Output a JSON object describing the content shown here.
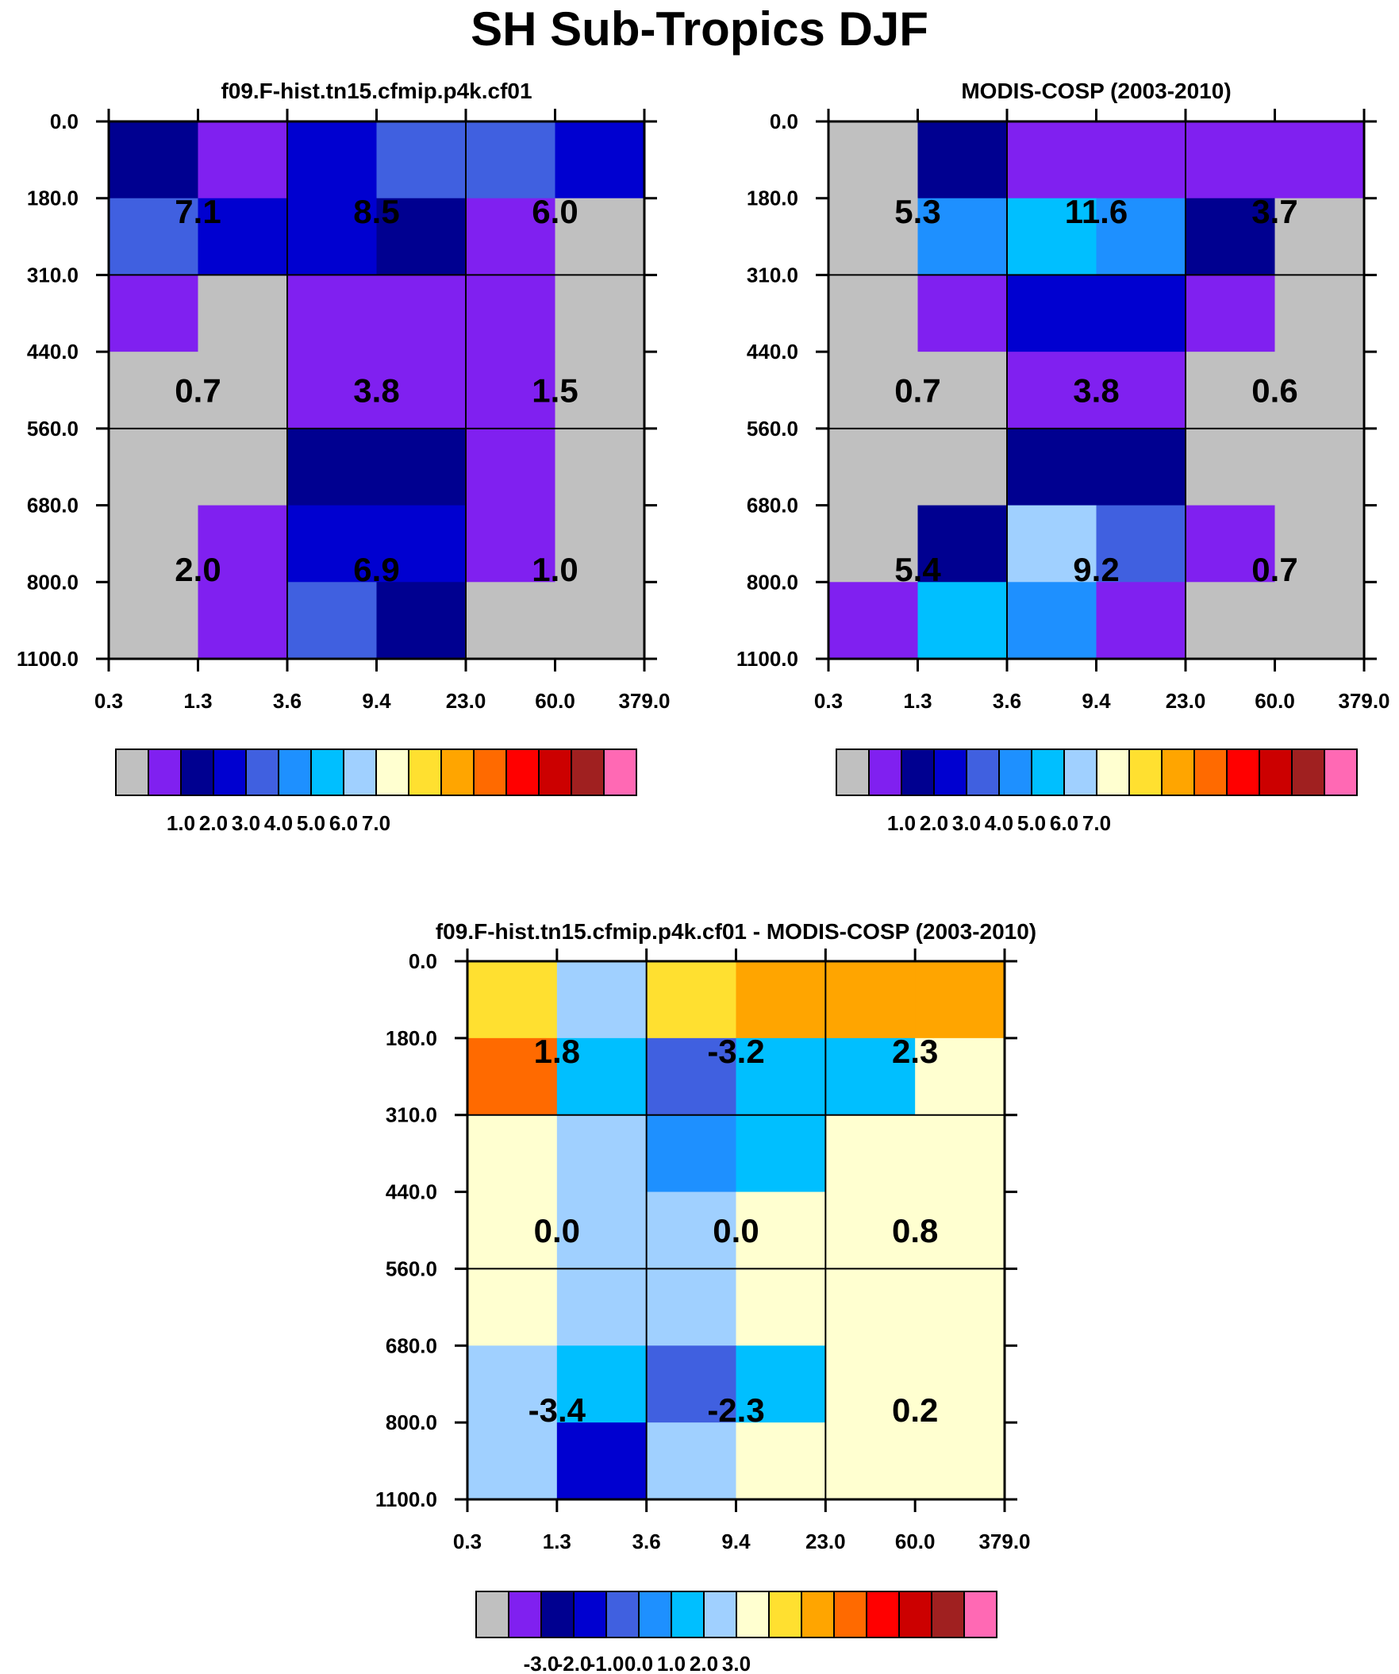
{
  "title": "SH Sub-Tropics DJF",
  "colors": {
    "palette": [
      "#c0c0c0",
      "#8020f0",
      "#000090",
      "#0000d0",
      "#4060e0",
      "#1e90ff",
      "#00bfff",
      "#a0d0ff",
      "#ffffd0",
      "#ffe030",
      "#ffa500",
      "#ff6a00",
      "#ff0000",
      "#cc0000",
      "#a02020",
      "#ff69b4"
    ]
  },
  "chart_data": [
    {
      "type": "heatmap",
      "title": "f09.F-hist.tn15.cfmip.p4k.cf01",
      "x_ticks": [
        "0.3",
        "1.3",
        "3.6",
        "9.4",
        "23.0",
        "60.0",
        "379.0"
      ],
      "y_ticks": [
        "0.0",
        "180.0",
        "310.0",
        "440.0",
        "560.0",
        "680.0",
        "800.0",
        "1100.0"
      ],
      "cells": [
        [
          2,
          1,
          3,
          4,
          4,
          3
        ],
        [
          4,
          3,
          3,
          2,
          1,
          0
        ],
        [
          1,
          0,
          1,
          1,
          1,
          0
        ],
        [
          0,
          0,
          1,
          1,
          1,
          0
        ],
        [
          0,
          0,
          2,
          2,
          1,
          0
        ],
        [
          0,
          1,
          3,
          3,
          1,
          0
        ],
        [
          0,
          1,
          4,
          2,
          0,
          0
        ]
      ],
      "boxes": [
        {
          "label": "7.1",
          "col": 0,
          "row": 0
        },
        {
          "label": "8.5",
          "col": 1,
          "row": 0
        },
        {
          "label": "6.0",
          "col": 2,
          "row": 0
        },
        {
          "label": "0.7",
          "col": 0,
          "row": 1
        },
        {
          "label": "3.8",
          "col": 1,
          "row": 1
        },
        {
          "label": "1.5",
          "col": 2,
          "row": 1
        },
        {
          "label": "2.0",
          "col": 0,
          "row": 2
        },
        {
          "label": "6.9",
          "col": 1,
          "row": 2
        },
        {
          "label": "1.0",
          "col": 2,
          "row": 2
        }
      ],
      "colorbar_labels": [
        "1.0",
        "2.0",
        "3.0",
        "4.0",
        "5.0",
        "6.0",
        "7.0"
      ]
    },
    {
      "type": "heatmap",
      "title": "MODIS-COSP (2003-2010)",
      "x_ticks": [
        "0.3",
        "1.3",
        "3.6",
        "9.4",
        "23.0",
        "60.0",
        "379.0"
      ],
      "y_ticks": [
        "0.0",
        "180.0",
        "310.0",
        "440.0",
        "560.0",
        "680.0",
        "800.0",
        "1100.0"
      ],
      "cells": [
        [
          0,
          2,
          1,
          1,
          1,
          1
        ],
        [
          0,
          5,
          6,
          5,
          2,
          0
        ],
        [
          0,
          1,
          3,
          3,
          1,
          0
        ],
        [
          0,
          0,
          1,
          1,
          0,
          0
        ],
        [
          0,
          0,
          2,
          2,
          0,
          0
        ],
        [
          0,
          2,
          7,
          4,
          1,
          0
        ],
        [
          1,
          6,
          5,
          1,
          0,
          0
        ]
      ],
      "boxes": [
        {
          "label": "5.3",
          "col": 0,
          "row": 0
        },
        {
          "label": "11.6",
          "col": 1,
          "row": 0
        },
        {
          "label": "3.7",
          "col": 2,
          "row": 0
        },
        {
          "label": "0.7",
          "col": 0,
          "row": 1
        },
        {
          "label": "3.8",
          "col": 1,
          "row": 1
        },
        {
          "label": "0.6",
          "col": 2,
          "row": 1
        },
        {
          "label": "5.4",
          "col": 0,
          "row": 2
        },
        {
          "label": "9.2",
          "col": 1,
          "row": 2
        },
        {
          "label": "0.7",
          "col": 2,
          "row": 2
        }
      ],
      "colorbar_labels": [
        "1.0",
        "2.0",
        "3.0",
        "4.0",
        "5.0",
        "6.0",
        "7.0"
      ]
    },
    {
      "type": "heatmap",
      "title": "f09.F-hist.tn15.cfmip.p4k.cf01 - MODIS-COSP (2003-2010)",
      "x_ticks": [
        "0.3",
        "1.3",
        "3.6",
        "9.4",
        "23.0",
        "60.0",
        "379.0"
      ],
      "y_ticks": [
        "0.0",
        "180.0",
        "310.0",
        "440.0",
        "560.0",
        "680.0",
        "800.0",
        "1100.0"
      ],
      "cells": [
        [
          9,
          7,
          9,
          10,
          10,
          10
        ],
        [
          11,
          6,
          4,
          6,
          6,
          8
        ],
        [
          8,
          7,
          5,
          6,
          8,
          8
        ],
        [
          8,
          7,
          7,
          8,
          8,
          8
        ],
        [
          8,
          7,
          7,
          8,
          8,
          8
        ],
        [
          7,
          6,
          4,
          6,
          8,
          8
        ],
        [
          7,
          3,
          7,
          8,
          8,
          8
        ]
      ],
      "boxes": [
        {
          "label": "1.8",
          "col": 0,
          "row": 0
        },
        {
          "label": "-3.2",
          "col": 1,
          "row": 0
        },
        {
          "label": "2.3",
          "col": 2,
          "row": 0
        },
        {
          "label": "0.0",
          "col": 0,
          "row": 1
        },
        {
          "label": "0.0",
          "col": 1,
          "row": 1
        },
        {
          "label": "0.8",
          "col": 2,
          "row": 1
        },
        {
          "label": "-3.4",
          "col": 0,
          "row": 2
        },
        {
          "label": "-2.3",
          "col": 1,
          "row": 2
        },
        {
          "label": "0.2",
          "col": 2,
          "row": 2
        }
      ],
      "colorbar_labels": [
        "-3.0",
        "-2.0",
        "-1.0",
        "0.0",
        "1.0",
        "2.0",
        "3.0"
      ]
    }
  ]
}
